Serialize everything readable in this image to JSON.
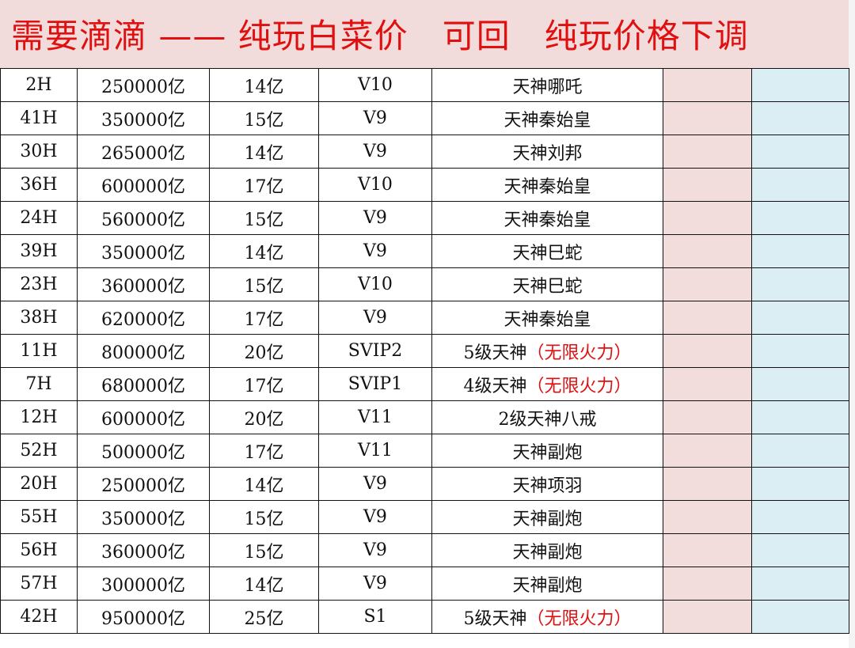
{
  "title": "需要滴滴 —— 纯玩白菜价   可回   纯玩价格下调",
  "colors": {
    "title_text": "#e01010",
    "title_bg": "#f2dcdb",
    "col6_bg": "#f2dcdc",
    "col7_bg": "#daeef3",
    "highlight_text": "#e01010"
  },
  "rows": [
    {
      "server": "2H",
      "power": "250000亿",
      "price": "14亿",
      "vip": "V10",
      "desc": "天神哪吒",
      "note": ""
    },
    {
      "server": "41H",
      "power": "350000亿",
      "price": "15亿",
      "vip": "V9",
      "desc": "天神秦始皇",
      "note": ""
    },
    {
      "server": "30H",
      "power": "265000亿",
      "price": "14亿",
      "vip": "V9",
      "desc": "天神刘邦",
      "note": ""
    },
    {
      "server": "36H",
      "power": "600000亿",
      "price": "17亿",
      "vip": "V10",
      "desc": "天神秦始皇",
      "note": ""
    },
    {
      "server": "24H",
      "power": "560000亿",
      "price": "15亿",
      "vip": "V9",
      "desc": "天神秦始皇",
      "note": ""
    },
    {
      "server": "39H",
      "power": "350000亿",
      "price": "14亿",
      "vip": "V9",
      "desc": "天神巳蛇",
      "note": ""
    },
    {
      "server": "23H",
      "power": "360000亿",
      "price": "15亿",
      "vip": "V10",
      "desc": "天神巳蛇",
      "note": ""
    },
    {
      "server": "38H",
      "power": "620000亿",
      "price": "17亿",
      "vip": "V9",
      "desc": "天神秦始皇",
      "note": ""
    },
    {
      "server": "11H",
      "power": "800000亿",
      "price": "20亿",
      "vip": "SVIP2",
      "desc": "5级天神",
      "note": "（无限火力）"
    },
    {
      "server": "7H",
      "power": "680000亿",
      "price": "17亿",
      "vip": "SVIP1",
      "desc": "4级天神",
      "note": "（无限火力）"
    },
    {
      "server": "12H",
      "power": "600000亿",
      "price": "20亿",
      "vip": "V11",
      "desc": "2级天神八戒",
      "note": ""
    },
    {
      "server": "52H",
      "power": "500000亿",
      "price": "17亿",
      "vip": "V11",
      "desc": "天神副炮",
      "note": ""
    },
    {
      "server": "20H",
      "power": "250000亿",
      "price": "14亿",
      "vip": "V9",
      "desc": "天神项羽",
      "note": ""
    },
    {
      "server": "55H",
      "power": "350000亿",
      "price": "15亿",
      "vip": "V9",
      "desc": "天神副炮",
      "note": ""
    },
    {
      "server": "56H",
      "power": "360000亿",
      "price": "15亿",
      "vip": "V9",
      "desc": "天神副炮",
      "note": ""
    },
    {
      "server": "57H",
      "power": "300000亿",
      "price": "14亿",
      "vip": "V9",
      "desc": "天神副炮",
      "note": ""
    },
    {
      "server": "42H",
      "power": "950000亿",
      "price": "25亿",
      "vip": "S1",
      "desc": "5级天神",
      "note": "（无限火力）"
    }
  ]
}
